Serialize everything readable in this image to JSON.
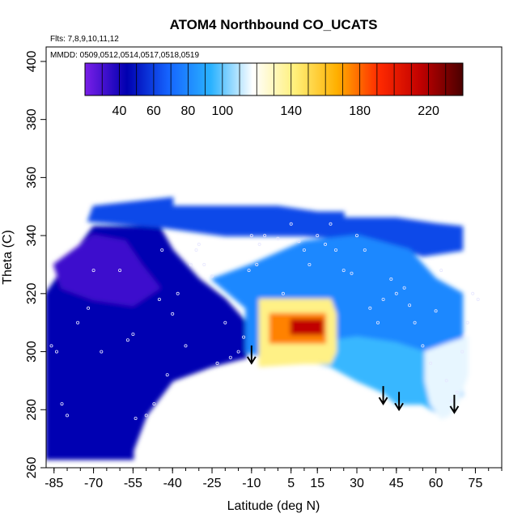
{
  "chart_data": {
    "type": "heatmap",
    "title": "ATOM4 Northbound CO_UCATS",
    "flights_label": "Flts: 7,8,9,10,11,12",
    "dates_label": "MMDD: 0509,0512,0514,0517,0518,0519",
    "xlabel": "Latitude (deg N)",
    "ylabel": "Theta (C)",
    "xlim": [
      -88,
      85
    ],
    "ylim": [
      260,
      405
    ],
    "x_ticks": [
      -85,
      -70,
      -55,
      -40,
      -25,
      -10,
      5,
      15,
      30,
      45,
      60,
      75
    ],
    "y_ticks": [
      260,
      280,
      300,
      320,
      340,
      360,
      380,
      400
    ],
    "colorbar": {
      "range": [
        20,
        240
      ],
      "ticks": [
        40,
        60,
        80,
        100,
        140,
        180,
        220
      ],
      "colors": [
        "#7a1fe8",
        "#0000b0",
        "#1565ff",
        "#2ab2ff",
        "#ffffff",
        "#fff07a",
        "#ffb000",
        "#ff2a00",
        "#c00000",
        "#4a0000"
      ]
    },
    "regions": [
      {
        "name": "southern-troposphere-low",
        "value": 45,
        "polygon": [
          [
            -88,
            263
          ],
          [
            -88,
            320
          ],
          [
            -78,
            333
          ],
          [
            -70,
            343
          ],
          [
            -45,
            343
          ],
          [
            -40,
            335
          ],
          [
            -30,
            325
          ],
          [
            -20,
            318
          ],
          [
            -12,
            310
          ],
          [
            -12,
            298
          ],
          [
            -25,
            295
          ],
          [
            -40,
            290
          ],
          [
            -50,
            278
          ],
          [
            -55,
            266
          ],
          [
            -55,
            263
          ]
        ]
      },
      {
        "name": "southern-stratosphere-purple",
        "value": 32,
        "polygon": [
          [
            -85,
            330
          ],
          [
            -70,
            340
          ],
          [
            -58,
            338
          ],
          [
            -52,
            330
          ],
          [
            -45,
            322
          ],
          [
            -55,
            316
          ],
          [
            -70,
            318
          ],
          [
            -82,
            322
          ]
        ]
      },
      {
        "name": "upper-band-mid",
        "value": 62,
        "polygon": [
          [
            -72,
            345
          ],
          [
            -70,
            350
          ],
          [
            -40,
            353
          ],
          [
            -40,
            350
          ],
          [
            -8,
            350
          ],
          [
            0,
            350
          ],
          [
            15,
            348
          ],
          [
            25,
            348
          ],
          [
            25,
            346
          ],
          [
            45,
            346
          ],
          [
            60,
            344
          ],
          [
            70,
            343
          ],
          [
            70,
            335
          ],
          [
            55,
            333
          ],
          [
            40,
            338
          ],
          [
            10,
            340
          ],
          [
            -20,
            340
          ],
          [
            -45,
            343
          ]
        ]
      },
      {
        "name": "midlatitude-blue",
        "value": 80,
        "polygon": [
          [
            -25,
            325
          ],
          [
            -10,
            330
          ],
          [
            10,
            338
          ],
          [
            30,
            340
          ],
          [
            50,
            335
          ],
          [
            60,
            325
          ],
          [
            70,
            320
          ],
          [
            70,
            305
          ],
          [
            55,
            300
          ],
          [
            40,
            300
          ],
          [
            25,
            298
          ],
          [
            15,
            298
          ],
          [
            5,
            298
          ],
          [
            -5,
            298
          ],
          [
            -12,
            300
          ],
          [
            -12,
            315
          ]
        ]
      },
      {
        "name": "lower-tropics-lightblue",
        "value": 95,
        "polygon": [
          [
            15,
            303
          ],
          [
            30,
            305
          ],
          [
            45,
            303
          ],
          [
            55,
            300
          ],
          [
            65,
            298
          ],
          [
            70,
            295
          ],
          [
            70,
            285
          ],
          [
            66,
            282
          ],
          [
            62,
            278
          ],
          [
            55,
            282
          ],
          [
            45,
            282
          ],
          [
            40,
            286
          ],
          [
            30,
            290
          ],
          [
            20,
            295
          ],
          [
            10,
            297
          ],
          [
            5,
            298
          ]
        ]
      },
      {
        "name": "northern-lowlevel-pale",
        "value": 115,
        "polygon": [
          [
            56,
            300
          ],
          [
            65,
            303
          ],
          [
            72,
            305
          ],
          [
            72,
            292
          ],
          [
            68,
            282
          ],
          [
            65,
            278
          ],
          [
            62,
            277
          ],
          [
            58,
            282
          ],
          [
            56,
            290
          ]
        ]
      },
      {
        "name": "tropical-plume-outer",
        "value": 140,
        "polygon": [
          [
            -7,
            295
          ],
          [
            -7,
            318
          ],
          [
            20,
            318
          ],
          [
            22,
            313
          ],
          [
            22,
            300
          ],
          [
            20,
            296
          ],
          [
            10,
            296
          ]
        ]
      },
      {
        "name": "tropical-plume-inner",
        "value": 175,
        "polygon": [
          [
            -3,
            303
          ],
          [
            -3,
            313
          ],
          [
            18,
            313
          ],
          [
            18,
            303
          ]
        ]
      },
      {
        "name": "tropical-plume-core",
        "value": 215,
        "polygon": [
          [
            5,
            306
          ],
          [
            5,
            311
          ],
          [
            17,
            311
          ],
          [
            17,
            306
          ]
        ]
      }
    ],
    "observation_points": [
      [
        -86,
        302
      ],
      [
        -84,
        300
      ],
      [
        -82,
        282
      ],
      [
        -80,
        278
      ],
      [
        -76,
        310
      ],
      [
        -72,
        315
      ],
      [
        -70,
        328
      ],
      [
        -67,
        300
      ],
      [
        -60,
        328
      ],
      [
        -57,
        304
      ],
      [
        -55,
        306
      ],
      [
        -54,
        277
      ],
      [
        -50,
        278
      ],
      [
        -47,
        282
      ],
      [
        -45,
        318
      ],
      [
        -44,
        335
      ],
      [
        -42,
        292
      ],
      [
        -40,
        313
      ],
      [
        -38,
        320
      ],
      [
        -35,
        302
      ],
      [
        -33,
        330
      ],
      [
        -31,
        335
      ],
      [
        -30,
        337
      ],
      [
        -28,
        330
      ],
      [
        -25,
        326
      ],
      [
        -23,
        296
      ],
      [
        -20,
        310
      ],
      [
        -18,
        298
      ],
      [
        -15,
        300
      ],
      [
        -13,
        305
      ],
      [
        -11,
        328
      ],
      [
        -10,
        340
      ],
      [
        -8,
        330
      ],
      [
        -7,
        337
      ],
      [
        -5,
        340
      ],
      [
        0,
        339
      ],
      [
        2,
        320
      ],
      [
        5,
        344
      ],
      [
        8,
        338
      ],
      [
        10,
        335
      ],
      [
        12,
        330
      ],
      [
        15,
        340
      ],
      [
        18,
        337
      ],
      [
        20,
        344
      ],
      [
        22,
        335
      ],
      [
        25,
        328
      ],
      [
        28,
        327
      ],
      [
        30,
        340
      ],
      [
        33,
        335
      ],
      [
        35,
        315
      ],
      [
        38,
        310
      ],
      [
        40,
        318
      ],
      [
        43,
        325
      ],
      [
        45,
        320
      ],
      [
        48,
        322
      ],
      [
        50,
        316
      ],
      [
        52,
        310
      ],
      [
        55,
        302
      ],
      [
        58,
        296
      ],
      [
        60,
        314
      ],
      [
        62,
        328
      ],
      [
        64,
        290
      ],
      [
        66,
        283
      ],
      [
        68,
        286
      ],
      [
        70,
        300
      ],
      [
        72,
        310
      ],
      [
        74,
        320
      ],
      [
        76,
        318
      ]
    ],
    "annotations": [
      {
        "type": "arrow-down",
        "x": -10,
        "y": 296
      },
      {
        "type": "arrow-down",
        "x": 40,
        "y": 282
      },
      {
        "type": "arrow-down",
        "x": 46,
        "y": 280
      },
      {
        "type": "arrow-down",
        "x": 67,
        "y": 279
      }
    ],
    "grid": false,
    "legend_position": "top"
  }
}
